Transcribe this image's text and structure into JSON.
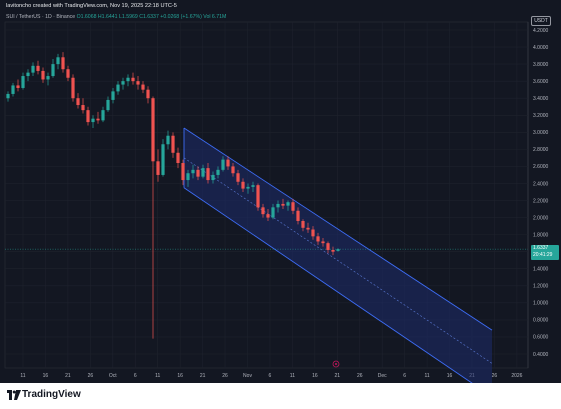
{
  "header": {
    "author_line": "lavitoncho created with TradingView.com, Nov 19, 2025 22:18 UTC-5"
  },
  "symbol_bar": {
    "symbol": "SUI / TetherUS · 1D · Binance",
    "open": "O1.6068",
    "high": "H1.6441",
    "low": "L1.5969",
    "close": "C1.6337",
    "change": "+0.0268 (+1.67%)",
    "volume": "Vol 6.71M"
  },
  "currency_button": "USDT",
  "last_price": {
    "price": "1.6337",
    "countdown": "20:41:29"
  },
  "footer": {
    "brand": "TradingView"
  },
  "chart_data": {
    "type": "candlestick",
    "y_axis_ticks": [
      "4.2000",
      "4.0000",
      "3.8000",
      "3.6000",
      "3.4000",
      "3.2000",
      "3.0000",
      "2.8000",
      "2.6000",
      "2.4000",
      "2.2000",
      "2.0000",
      "1.8000",
      "1.6000",
      "1.4000",
      "1.2000",
      "1.0000",
      "0.8000",
      "0.6000",
      "0.4000"
    ],
    "x_axis_ticks": [
      "11",
      "16",
      "21",
      "26",
      "Oct",
      "6",
      "11",
      "16",
      "21",
      "26",
      "Nov",
      "6",
      "11",
      "16",
      "21",
      "26",
      "Dec",
      "6",
      "11",
      "16",
      "21",
      "26",
      "2026"
    ],
    "ylim": [
      0.4,
      4.2
    ],
    "candles": [
      {
        "o": 3.4,
        "h": 3.48,
        "l": 3.36,
        "c": 3.45
      },
      {
        "o": 3.45,
        "h": 3.58,
        "l": 3.42,
        "c": 3.55
      },
      {
        "o": 3.55,
        "h": 3.62,
        "l": 3.48,
        "c": 3.52
      },
      {
        "o": 3.52,
        "h": 3.7,
        "l": 3.5,
        "c": 3.66
      },
      {
        "o": 3.66,
        "h": 3.74,
        "l": 3.6,
        "c": 3.7
      },
      {
        "o": 3.7,
        "h": 3.82,
        "l": 3.66,
        "c": 3.78
      },
      {
        "o": 3.78,
        "h": 3.84,
        "l": 3.68,
        "c": 3.72
      },
      {
        "o": 3.72,
        "h": 3.76,
        "l": 3.58,
        "c": 3.62
      },
      {
        "o": 3.62,
        "h": 3.7,
        "l": 3.55,
        "c": 3.66
      },
      {
        "o": 3.66,
        "h": 3.86,
        "l": 3.64,
        "c": 3.8
      },
      {
        "o": 3.8,
        "h": 3.92,
        "l": 3.74,
        "c": 3.88
      },
      {
        "o": 3.88,
        "h": 3.94,
        "l": 3.7,
        "c": 3.74
      },
      {
        "o": 3.74,
        "h": 3.78,
        "l": 3.6,
        "c": 3.64
      },
      {
        "o": 3.64,
        "h": 3.68,
        "l": 3.36,
        "c": 3.4
      },
      {
        "o": 3.4,
        "h": 3.46,
        "l": 3.28,
        "c": 3.32
      },
      {
        "o": 3.32,
        "h": 3.4,
        "l": 3.22,
        "c": 3.26
      },
      {
        "o": 3.26,
        "h": 3.3,
        "l": 3.08,
        "c": 3.12
      },
      {
        "o": 3.12,
        "h": 3.2,
        "l": 3.05,
        "c": 3.16
      },
      {
        "o": 3.16,
        "h": 3.24,
        "l": 3.1,
        "c": 3.14
      },
      {
        "o": 3.14,
        "h": 3.3,
        "l": 3.12,
        "c": 3.26
      },
      {
        "o": 3.26,
        "h": 3.42,
        "l": 3.24,
        "c": 3.38
      },
      {
        "o": 3.38,
        "h": 3.52,
        "l": 3.34,
        "c": 3.48
      },
      {
        "o": 3.48,
        "h": 3.6,
        "l": 3.44,
        "c": 3.56
      },
      {
        "o": 3.56,
        "h": 3.64,
        "l": 3.5,
        "c": 3.6
      },
      {
        "o": 3.6,
        "h": 3.68,
        "l": 3.54,
        "c": 3.64
      },
      {
        "o": 3.64,
        "h": 3.7,
        "l": 3.56,
        "c": 3.6
      },
      {
        "o": 3.6,
        "h": 3.66,
        "l": 3.5,
        "c": 3.56
      },
      {
        "o": 3.56,
        "h": 3.6,
        "l": 3.46,
        "c": 3.5
      },
      {
        "o": 3.5,
        "h": 3.54,
        "l": 3.34,
        "c": 3.4
      },
      {
        "o": 3.4,
        "h": 3.42,
        "l": 0.58,
        "c": 2.66
      },
      {
        "o": 2.66,
        "h": 2.8,
        "l": 2.42,
        "c": 2.5
      },
      {
        "o": 2.5,
        "h": 2.92,
        "l": 2.48,
        "c": 2.86
      },
      {
        "o": 2.86,
        "h": 3.02,
        "l": 2.8,
        "c": 2.96
      },
      {
        "o": 2.96,
        "h": 3.0,
        "l": 2.7,
        "c": 2.76
      },
      {
        "o": 2.76,
        "h": 2.82,
        "l": 2.58,
        "c": 2.64
      },
      {
        "o": 2.64,
        "h": 2.68,
        "l": 2.38,
        "c": 2.44
      },
      {
        "o": 2.44,
        "h": 2.56,
        "l": 2.36,
        "c": 2.52
      },
      {
        "o": 2.52,
        "h": 2.62,
        "l": 2.46,
        "c": 2.56
      },
      {
        "o": 2.56,
        "h": 2.6,
        "l": 2.44,
        "c": 2.48
      },
      {
        "o": 2.48,
        "h": 2.62,
        "l": 2.46,
        "c": 2.58
      },
      {
        "o": 2.58,
        "h": 2.64,
        "l": 2.4,
        "c": 2.44
      },
      {
        "o": 2.44,
        "h": 2.54,
        "l": 2.4,
        "c": 2.5
      },
      {
        "o": 2.5,
        "h": 2.6,
        "l": 2.46,
        "c": 2.56
      },
      {
        "o": 2.56,
        "h": 2.72,
        "l": 2.54,
        "c": 2.68
      },
      {
        "o": 2.68,
        "h": 2.72,
        "l": 2.56,
        "c": 2.6
      },
      {
        "o": 2.6,
        "h": 2.64,
        "l": 2.48,
        "c": 2.52
      },
      {
        "o": 2.52,
        "h": 2.56,
        "l": 2.38,
        "c": 2.42
      },
      {
        "o": 2.42,
        "h": 2.46,
        "l": 2.3,
        "c": 2.34
      },
      {
        "o": 2.34,
        "h": 2.4,
        "l": 2.28,
        "c": 2.36
      },
      {
        "o": 2.36,
        "h": 2.42,
        "l": 2.3,
        "c": 2.38
      },
      {
        "o": 2.38,
        "h": 2.4,
        "l": 2.08,
        "c": 2.12
      },
      {
        "o": 2.12,
        "h": 2.16,
        "l": 2.0,
        "c": 2.04
      },
      {
        "o": 2.04,
        "h": 2.1,
        "l": 1.96,
        "c": 2.0
      },
      {
        "o": 2.0,
        "h": 2.16,
        "l": 1.98,
        "c": 2.12
      },
      {
        "o": 2.12,
        "h": 2.2,
        "l": 2.06,
        "c": 2.16
      },
      {
        "o": 2.16,
        "h": 2.22,
        "l": 2.1,
        "c": 2.14
      },
      {
        "o": 2.14,
        "h": 2.2,
        "l": 2.08,
        "c": 2.18
      },
      {
        "o": 2.18,
        "h": 2.22,
        "l": 2.04,
        "c": 2.08
      },
      {
        "o": 2.08,
        "h": 2.12,
        "l": 1.92,
        "c": 1.96
      },
      {
        "o": 1.96,
        "h": 1.98,
        "l": 1.84,
        "c": 1.88
      },
      {
        "o": 1.88,
        "h": 1.94,
        "l": 1.82,
        "c": 1.86
      },
      {
        "o": 1.86,
        "h": 1.9,
        "l": 1.74,
        "c": 1.78
      },
      {
        "o": 1.78,
        "h": 1.82,
        "l": 1.68,
        "c": 1.72
      },
      {
        "o": 1.72,
        "h": 1.76,
        "l": 1.66,
        "c": 1.7
      },
      {
        "o": 1.7,
        "h": 1.72,
        "l": 1.58,
        "c": 1.62
      },
      {
        "o": 1.62,
        "h": 1.66,
        "l": 1.56,
        "c": 1.6
      },
      {
        "o": 1.61,
        "h": 1.64,
        "l": 1.6,
        "c": 1.63
      }
    ],
    "colors": {
      "up": "#26a69a",
      "down": "#ef5350",
      "channel_line": "#3d6cf5",
      "channel_fill": "#1d2b6b"
    },
    "grid": true
  }
}
